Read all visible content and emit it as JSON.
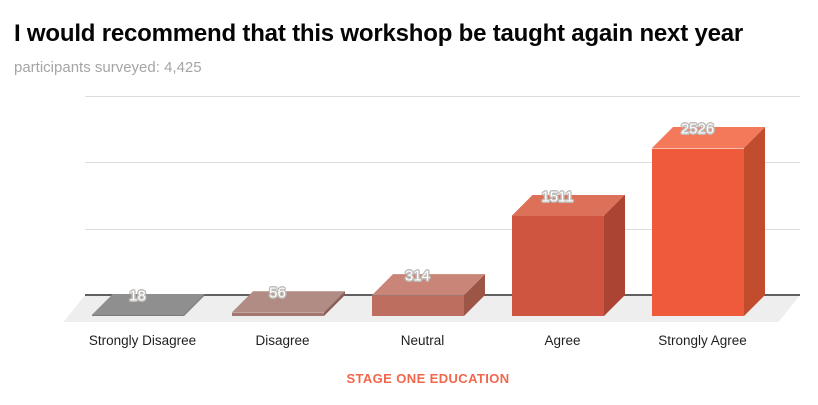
{
  "footer": {
    "brand": "STAGE ONE EDUCATION",
    "color": "#f2674c"
  },
  "chart_data": {
    "type": "bar",
    "style": "3d-column",
    "title": "I would recommend that this workshop be taught again next year",
    "subtitle": "participants surveyed: 4,425",
    "participants_surveyed": "4,425",
    "categories": [
      "Strongly Disagree",
      "Disagree",
      "Neutral",
      "Agree",
      "Strongly Agree"
    ],
    "values": [
      18,
      56,
      314,
      1511,
      2526
    ],
    "xlabel": "",
    "ylabel": "",
    "ylim": [
      0,
      3000
    ],
    "gridline_step": 1000,
    "grid": true,
    "legend": "none",
    "y_tick_labels_visible": false,
    "gridline_color": "#dcdcdc",
    "baseline_color": "#616161",
    "floor_color": "#eeeeee",
    "value_label_color": "#ffffff",
    "bar_colors": [
      {
        "top": "#8f8f8f",
        "front": "#7b7b7b",
        "side": "#6b6b6b"
      },
      {
        "top": "#b18c84",
        "front": "#a1776f",
        "side": "#8a6057"
      },
      {
        "top": "#c98578",
        "front": "#bd6e5f",
        "side": "#9d5546"
      },
      {
        "top": "#dd7058",
        "front": "#d05541",
        "side": "#ab4432"
      },
      {
        "top": "#f4795a",
        "front": "#ee5a3a",
        "side": "#c14c2e"
      }
    ]
  }
}
